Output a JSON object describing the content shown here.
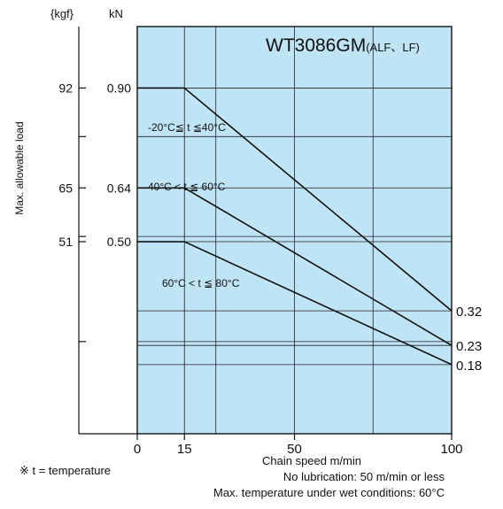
{
  "chart_data": {
    "type": "line",
    "title": "WT3086GM",
    "title_suffix": "(ALF、LF)",
    "xlabel": "Chain speed m/min",
    "ylabel": "Max. allowable load",
    "y_units": [
      "{kgf}",
      "kN"
    ],
    "xlim": [
      0,
      100
    ],
    "x_ticks": [
      0,
      15,
      50,
      100
    ],
    "x_ticks_minor": [
      25,
      75
    ],
    "ylim": [
      0,
      1.06
    ],
    "y_ticks_kN": [
      0.9,
      0.64,
      0.5
    ],
    "y_ticks_kgf": [
      92,
      65,
      51
    ],
    "y_tick_labels_kN": [
      "0.90",
      "0.64",
      "0.50"
    ],
    "y_tick_labels_kgf": [
      "92",
      "65",
      "51"
    ],
    "y_unlabeled_ticks": [
      0.24,
      0.5135,
      0.7735
    ],
    "grid": true,
    "background": "#bfe4f5",
    "line_color": "#111111",
    "series": [
      {
        "name": "-20°C≦ t ≦40°C",
        "x": [
          0,
          15,
          100
        ],
        "y": [
          0.9,
          0.9,
          0.32
        ],
        "end_label": "0.32"
      },
      {
        "name": "40°C < t ≦ 60°C",
        "x": [
          0,
          15,
          100
        ],
        "y": [
          0.64,
          0.64,
          0.23
        ],
        "end_label": "0.23"
      },
      {
        "name": "60°C < t ≦ 80°C",
        "x": [
          0,
          15,
          100
        ],
        "y": [
          0.5,
          0.5,
          0.18
        ],
        "end_label": "0.18"
      }
    ]
  },
  "notes": {
    "temperature": "※ t = temperature",
    "lubrication": "No lubrication: 50 m/min or less",
    "wet": "Max. temperature under wet conditions: 60°C"
  }
}
